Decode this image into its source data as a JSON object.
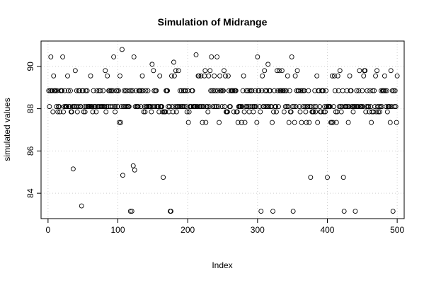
{
  "chart_data": {
    "type": "scatter",
    "title": "Simulation of Midrange",
    "xlabel": "Index",
    "ylabel": "simulated values",
    "xlim": [
      -10,
      510
    ],
    "ylim": [
      82.8,
      91.2
    ],
    "x_ticks": [
      0,
      100,
      200,
      300,
      400,
      500
    ],
    "y_ticks": [
      84,
      86,
      88,
      90
    ],
    "grid": true,
    "marker": "open-circle",
    "color": "#000000",
    "n_points": 500,
    "levels": [
      83.15,
      84.75,
      85.1,
      85.3,
      87.35,
      87.85,
      88.1,
      88.85,
      89.55,
      89.8,
      90.45,
      90.8
    ],
    "level_weights": [
      8,
      5,
      1,
      1,
      30,
      70,
      190,
      130,
      35,
      20,
      4,
      1
    ],
    "notable_points": [
      {
        "x": 21,
        "y": 90.45
      },
      {
        "x": 36,
        "y": 85.15
      },
      {
        "x": 48,
        "y": 83.4
      },
      {
        "x": 106,
        "y": 90.8
      },
      {
        "x": 107,
        "y": 84.85
      },
      {
        "x": 118,
        "y": 83.15
      },
      {
        "x": 120,
        "y": 83.15
      },
      {
        "x": 122,
        "y": 85.3
      },
      {
        "x": 124,
        "y": 85.1
      },
      {
        "x": 149,
        "y": 90.1
      },
      {
        "x": 165,
        "y": 84.75
      },
      {
        "x": 175,
        "y": 83.15
      },
      {
        "x": 176,
        "y": 83.15
      },
      {
        "x": 180,
        "y": 90.2
      },
      {
        "x": 212,
        "y": 90.55
      },
      {
        "x": 242,
        "y": 90.45
      },
      {
        "x": 305,
        "y": 83.15
      },
      {
        "x": 315,
        "y": 90.1
      },
      {
        "x": 322,
        "y": 83.15
      },
      {
        "x": 351,
        "y": 83.15
      },
      {
        "x": 376,
        "y": 84.75
      },
      {
        "x": 400,
        "y": 84.75
      },
      {
        "x": 423,
        "y": 84.75
      },
      {
        "x": 424,
        "y": 83.15
      },
      {
        "x": 440,
        "y": 83.15
      },
      {
        "x": 494,
        "y": 83.15
      }
    ]
  }
}
